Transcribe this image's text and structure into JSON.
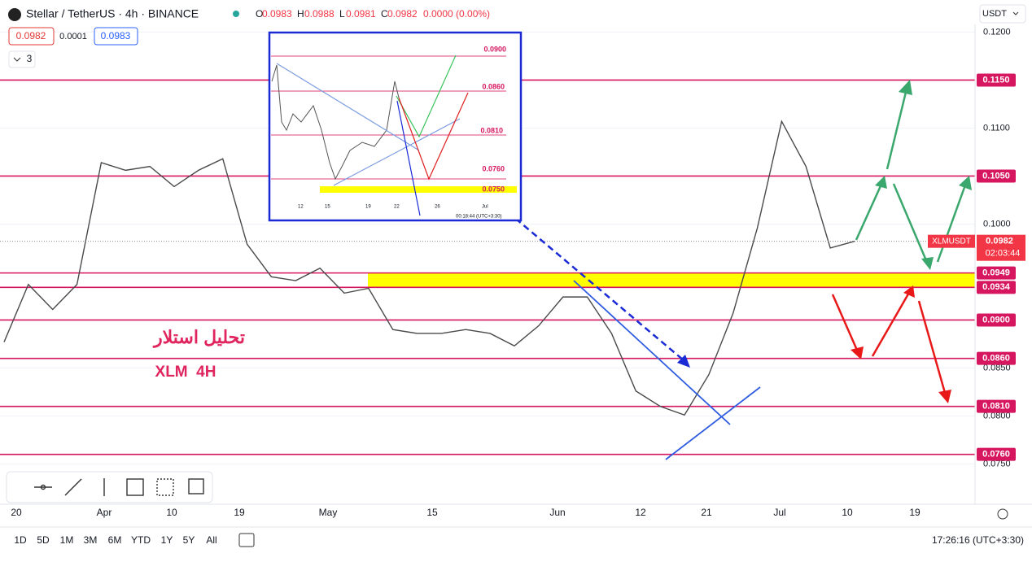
{
  "header": {
    "symbol": "Stellar / TetherUS · 4h · BINANCE",
    "ohlc": [
      "O",
      "0.0983",
      "H",
      "0.0988",
      "L",
      "0.0981",
      "C",
      "0.0982",
      "0.0000 (0.00%)"
    ],
    "bid": "0.0982",
    "spread": "0.0001",
    "ask": "0.0983",
    "indicators": "3",
    "currency": "USDT"
  },
  "chart_data": {
    "type": "line",
    "series": [
      {
        "name": "XLMUSDT",
        "color": "#4a4a4a",
        "values": [
          0.0877,
          0.0937,
          0.0911,
          0.0937,
          0.1064,
          0.1056,
          0.106,
          0.1039,
          0.1056,
          0.1068,
          0.0979,
          0.0945,
          0.0941,
          0.0954,
          0.0928,
          0.0933,
          0.089,
          0.0886,
          0.0886,
          0.089,
          0.0886,
          0.0873,
          0.0894,
          0.0924,
          0.0924,
          0.0886,
          0.0826,
          0.081,
          0.0801,
          0.0843,
          0.0907,
          0.0996,
          0.1107,
          0.106,
          0.0975,
          0.0982
        ]
      }
    ],
    "ylim": [
      0.0708,
      0.1208
    ],
    "yticks": [
      {
        "value": 0.12,
        "label": "0.1200"
      },
      {
        "value": 0.11,
        "label": "0.1100"
      },
      {
        "value": 0.1,
        "label": "0.1000"
      },
      {
        "value": 0.085,
        "label": "0.0850"
      },
      {
        "value": 0.08,
        "label": "0.0800"
      },
      {
        "value": 0.075,
        "label": "0.0750"
      }
    ],
    "grid": true,
    "level_color": "#d6175f",
    "levels": [
      {
        "value": 0.115,
        "label": "0.1150"
      },
      {
        "value": 0.105,
        "label": "0.1050"
      },
      {
        "value": 0.0949,
        "label": "0.0949"
      },
      {
        "value": 0.0934,
        "label": "0.0934"
      },
      {
        "value": 0.09,
        "label": "0.0900"
      },
      {
        "value": 0.086,
        "label": "0.0860"
      },
      {
        "value": 0.081,
        "label": "0.0810"
      },
      {
        "value": 0.076,
        "label": "0.0760"
      }
    ],
    "zone_color": "#ffff00",
    "last_price": {
      "value": 0.0982,
      "label": "0.0982"
    },
    "countdown": "02:03:44",
    "xtick_labels": [
      "20",
      "Apr",
      "10",
      "19",
      "May",
      "15",
      "Jun",
      "12",
      "21",
      "Jul",
      "10",
      "19"
    ]
  },
  "annotations": {
    "title_fa": "تحلیل استلار",
    "subtitle": "XLM  4H"
  },
  "inset": {
    "levels": [
      "0.0900",
      "0.0860",
      "0.0810",
      "0.0760",
      "0.0750"
    ],
    "dates": [
      "12",
      "15",
      "19",
      "22",
      "26",
      "Jul"
    ],
    "time": "00:18:44 (UTC+3:30)"
  },
  "footer": {
    "ranges": [
      "1D",
      "5D",
      "1M",
      "3M",
      "6M",
      "YTD",
      "1Y",
      "5Y",
      "All"
    ],
    "clock": "17:26:16 (UTC+3:30)"
  }
}
